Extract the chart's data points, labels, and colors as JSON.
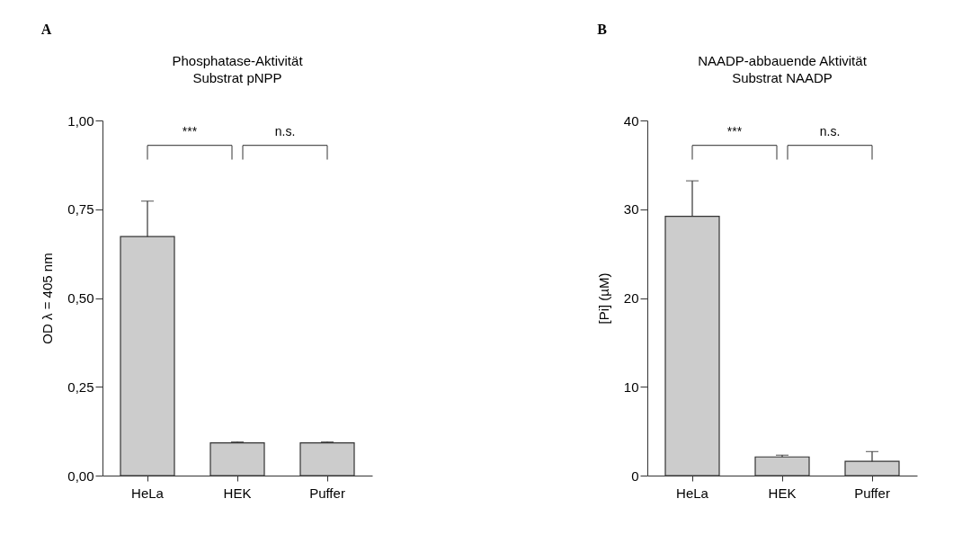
{
  "chart_data": [
    {
      "type": "bar",
      "title": "Phosphatase-Aktivität",
      "subtitle": "Substrat pNPP",
      "ylabel": "OD λ = 405 nm",
      "categories": [
        "HeLa",
        "HEK",
        "Puffer"
      ],
      "values": [
        0.673,
        0.092,
        0.092
      ],
      "errors": [
        [
          0.673,
          0.773
        ],
        [
          0.092,
          0.095
        ],
        [
          0.092,
          0.095
        ]
      ],
      "color": "#cccccc",
      "ylim": [
        0,
        1
      ],
      "yticks": [
        {
          "value": 0,
          "label": "0,00"
        },
        {
          "value": 0.25,
          "label": "0,25"
        },
        {
          "value": 0.5,
          "label": "0,50"
        },
        {
          "value": 0.75,
          "label": "0,75"
        },
        {
          "value": 1,
          "label": "1,00"
        }
      ],
      "grid": false,
      "annotations": [
        "A",
        "***",
        "n.s."
      ]
    },
    {
      "type": "bar",
      "title": "NAADP-abbauende Aktivität",
      "subtitle": "Substrat NAADP",
      "ylabel": "[Pi]  (µM)",
      "categories": [
        "HeLa",
        "HEK",
        "Puffer"
      ],
      "values": [
        29.2,
        2.1,
        1.6
      ],
      "errors": [
        [
          29.2,
          33.2
        ],
        [
          2.1,
          2.3
        ],
        [
          1.6,
          2.7
        ]
      ],
      "color": "#cccccc",
      "ylim": [
        0,
        40
      ],
      "yticks": [
        0,
        10,
        20,
        30,
        40
      ],
      "grid": false,
      "annotations": [
        "B",
        "***",
        "n.s."
      ]
    }
  ]
}
